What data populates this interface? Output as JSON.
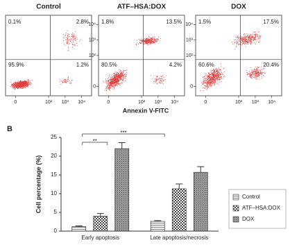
{
  "panel_label": "B",
  "x_axis_label": "Annexin V-FITC",
  "chart_data": [
    {
      "type": "flow",
      "title": "Control",
      "values": [
        0.1,
        2.8,
        95.9,
        1.2
      ],
      "value_labels": [
        "0.1%",
        "2.8%",
        "95.9%",
        "1.2%"
      ],
      "xticks": [
        {
          "value": 0,
          "label": "0"
        },
        {
          "value": 2,
          "label": "10²"
        },
        {
          "value": 3,
          "label": "10³"
        },
        {
          "value": 4,
          "label": "10⁴"
        }
      ],
      "xlim": [
        -0.6,
        4.6
      ],
      "ylim": [
        -0.6,
        4.6
      ],
      "color": "#e04040"
    },
    {
      "type": "flow",
      "title": "ATF–HSA:DOX",
      "values": [
        1.8,
        13.5,
        80.5,
        4.2
      ],
      "value_labels": [
        "1.8%",
        "13.5%",
        "80.5%",
        "4.2%"
      ],
      "xticks": [
        {
          "value": 0,
          "label": "0"
        },
        {
          "value": 2,
          "label": "10²"
        },
        {
          "value": 3,
          "label": "10³"
        },
        {
          "value": 4,
          "label": "10⁴"
        }
      ],
      "yticks": [
        {
          "value": 0,
          "label": "0"
        },
        {
          "value": 2,
          "label": "10²"
        },
        {
          "value": 3,
          "label": "10³"
        },
        {
          "value": 4,
          "label": "10⁴"
        }
      ],
      "xlim": [
        -0.6,
        4.6
      ],
      "ylim": [
        -0.6,
        4.6
      ],
      "color": "#e04040"
    },
    {
      "type": "flow",
      "title": "DOX",
      "values": [
        1.5,
        17.5,
        60.6,
        20.4
      ],
      "value_labels": [
        "1.5%",
        "17.5%",
        "60.6%",
        "20.4%"
      ],
      "xticks": [
        {
          "value": 0,
          "label": "0"
        },
        {
          "value": 2,
          "label": "10²"
        },
        {
          "value": 3,
          "label": "10³"
        },
        {
          "value": 4,
          "label": "10⁴"
        }
      ],
      "yticks": [
        {
          "value": 0,
          "label": "0"
        },
        {
          "value": 2,
          "label": "10²"
        },
        {
          "value": 3,
          "label": "10³"
        },
        {
          "value": 4,
          "label": "10⁴"
        }
      ],
      "xlim": [
        -0.6,
        4.6
      ],
      "ylim": [
        -0.6,
        4.6
      ],
      "color": "#e04040"
    },
    {
      "type": "bar",
      "y_axis_label": "Cell percentage (%)",
      "categories": [
        "Early apoptosis",
        "Late apoptosis/necrosis"
      ],
      "series": [
        {
          "name": "Control",
          "pattern": "stripes",
          "values": [
            1.2,
            2.6
          ],
          "errors": [
            0.2,
            0.2
          ]
        },
        {
          "name": "ATF–HSA:DOX",
          "pattern": "checks",
          "values": [
            4.0,
            11.3
          ],
          "errors": [
            0.7,
            1.3
          ]
        },
        {
          "name": "DOX",
          "pattern": "dots",
          "values": [
            22.0,
            15.7
          ],
          "errors": [
            1.6,
            1.5
          ]
        }
      ],
      "ylim": [
        0,
        25
      ],
      "yticks": [
        0,
        5,
        10,
        15,
        20,
        25
      ],
      "annotations": [
        "**",
        "***"
      ]
    }
  ]
}
